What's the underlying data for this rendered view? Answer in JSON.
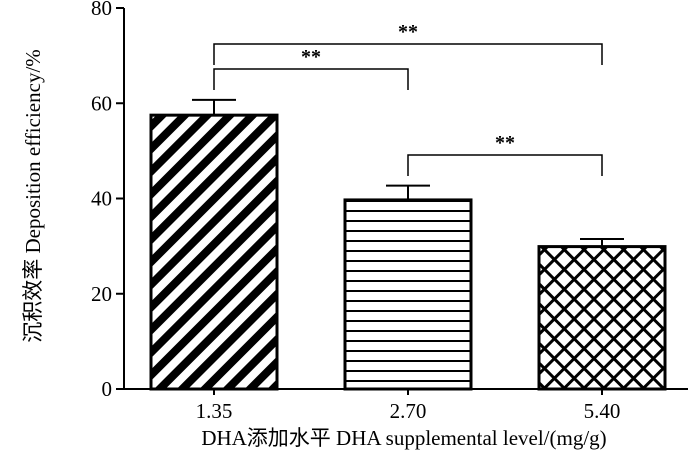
{
  "chart_data": {
    "type": "bar",
    "title": "",
    "xlabel": "DHA添加水平 DHA supplemental level/(mg/g)",
    "ylabel": "沉积效率  Deposition efficiency/%",
    "ylim": [
      0,
      80
    ],
    "yticks": [
      0,
      20,
      40,
      60,
      80
    ],
    "grid": false,
    "categories": [
      "1.35",
      "2.70",
      "5.40"
    ],
    "values": [
      57.5,
      39.7,
      29.9
    ],
    "errors": [
      3.2,
      3.0,
      1.6
    ],
    "patterns": [
      "diagonal-stripes",
      "horizontal-stripes",
      "crosshatch"
    ],
    "significance": [
      {
        "from": 0,
        "to": 1,
        "label": "**"
      },
      {
        "from": 0,
        "to": 2,
        "label": "**"
      },
      {
        "from": 1,
        "to": 2,
        "label": "**"
      }
    ]
  }
}
